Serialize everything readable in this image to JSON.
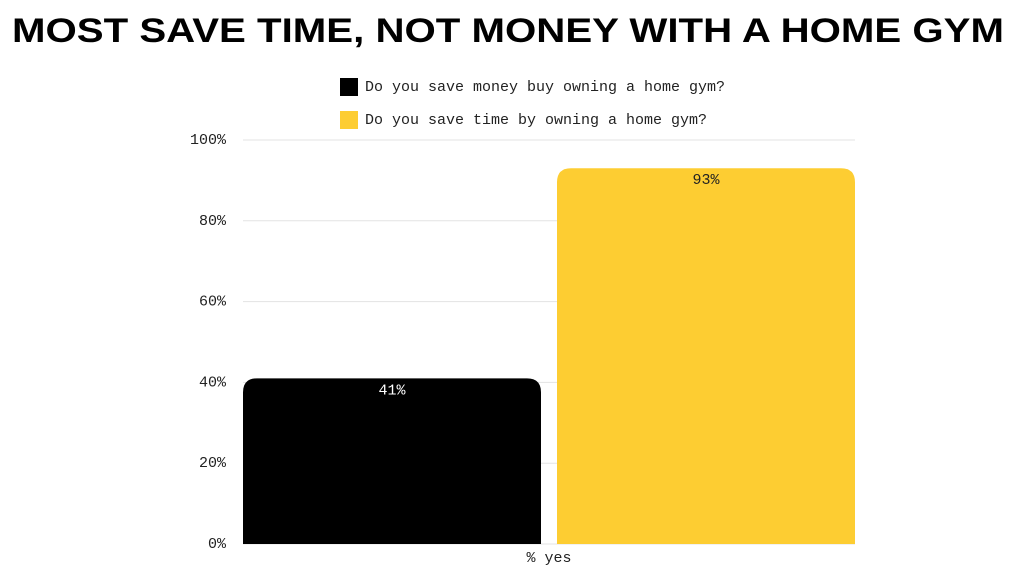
{
  "chart_data": {
    "type": "bar",
    "title": "MOST SAVE TIME, NOT MONEY WITH A HOME GYM",
    "categories": [
      "% yes"
    ],
    "series": [
      {
        "name": "Do you save money buy owning a home gym?",
        "color": "#000000",
        "values": [
          41
        ],
        "value_labels": [
          "41%"
        ]
      },
      {
        "name": "Do you save time by owning a home gym?",
        "color": "#fdcd32",
        "values": [
          93
        ],
        "value_labels": [
          "93%"
        ]
      }
    ],
    "ylim": [
      0,
      100
    ],
    "yticks": [
      {
        "value": 0,
        "label": "0%"
      },
      {
        "value": 20,
        "label": "20%"
      },
      {
        "value": 40,
        "label": "40%"
      },
      {
        "value": 60,
        "label": "60%"
      },
      {
        "value": 80,
        "label": "80%"
      },
      {
        "value": 100,
        "label": "100%"
      }
    ],
    "grid": true
  }
}
